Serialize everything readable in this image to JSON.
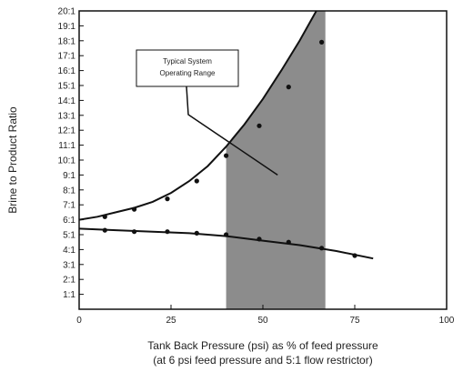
{
  "chart_data": {
    "type": "line",
    "xlabel": "Tank Back Pressure (psi) as % of feed pressure",
    "xlabel_line2": "(at 6 psi feed pressure and 5:1 flow restrictor)",
    "ylabel": "Brine to Product Ratio",
    "xlim": [
      0,
      100
    ],
    "ylim": [
      0,
      20
    ],
    "xticks": [
      0,
      25,
      50,
      75,
      100
    ],
    "xtick_labels": [
      "0",
      "25",
      "50",
      "75",
      "100"
    ],
    "yticks": [
      1,
      2,
      3,
      4,
      5,
      6,
      7,
      8,
      9,
      10,
      11,
      12,
      13,
      14,
      15,
      16,
      17,
      18,
      19,
      20
    ],
    "ytick_labels": [
      "1:1",
      "2:1",
      "3:1",
      "4:1",
      "5:1",
      "6:1",
      "7:1",
      "8:1",
      "9:1",
      "10:1",
      "11:1",
      "12:1",
      "13:1",
      "14:1",
      "15:1",
      "16:1",
      "17:1",
      "18:1",
      "19:1",
      "20:1"
    ],
    "grid": false,
    "shaded_region": {
      "x": [
        40,
        67
      ]
    },
    "annotation": {
      "lines": [
        "Typical System",
        "Operating Range"
      ],
      "pointer_to": [
        54,
        9
      ]
    },
    "series": [
      {
        "curve_x": [
          0,
          5,
          10,
          15,
          20,
          25,
          30,
          35,
          40,
          45,
          50,
          55,
          60,
          65,
          70,
          72
        ],
        "curve_y": [
          6.0,
          6.2,
          6.5,
          6.8,
          7.2,
          7.8,
          8.6,
          9.6,
          10.9,
          12.4,
          14.1,
          16.0,
          18.0,
          20.2,
          22.5,
          23.5
        ],
        "markers_x": [
          7,
          15,
          24,
          32,
          40,
          49,
          57,
          66
        ],
        "markers_y": [
          6.2,
          6.7,
          7.4,
          8.6,
          10.3,
          12.3,
          14.9,
          17.9
        ]
      },
      {
        "curve_x": [
          0,
          10,
          20,
          30,
          40,
          50,
          60,
          70,
          80
        ],
        "curve_y": [
          5.4,
          5.3,
          5.2,
          5.1,
          4.9,
          4.6,
          4.3,
          3.9,
          3.4
        ],
        "markers_x": [
          7,
          15,
          24,
          32,
          40,
          49,
          57,
          66,
          75
        ],
        "markers_y": [
          5.3,
          5.2,
          5.2,
          5.1,
          5.0,
          4.7,
          4.5,
          4.1,
          3.6
        ]
      }
    ]
  }
}
